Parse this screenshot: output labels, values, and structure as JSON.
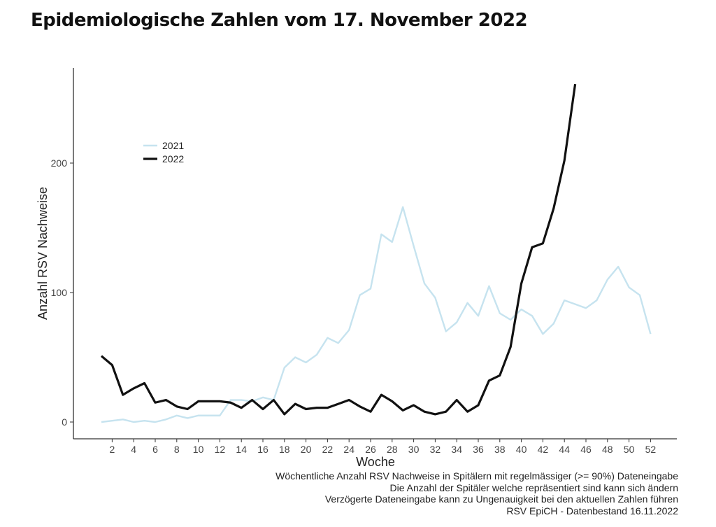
{
  "title": "Epidemiologische Zahlen vom 17. November 2022",
  "chart_data": {
    "type": "line",
    "xlabel": "Woche",
    "ylabel": "Anzahl RSV Nachweise",
    "xlim": [
      0.3,
      54.3
    ],
    "ylim": [
      -13,
      273
    ],
    "xticks": [
      2,
      4,
      6,
      8,
      10,
      12,
      14,
      16,
      18,
      20,
      22,
      24,
      26,
      28,
      30,
      32,
      34,
      36,
      38,
      40,
      42,
      44,
      46,
      48,
      50,
      52
    ],
    "yticks": [
      0,
      100,
      200
    ],
    "grid": false,
    "legend_position": "top-left",
    "series": [
      {
        "name": "2021",
        "color": "#c6e3ef",
        "x": [
          1,
          2,
          3,
          4,
          5,
          6,
          7,
          8,
          9,
          10,
          11,
          12,
          13,
          14,
          15,
          16,
          17,
          18,
          19,
          20,
          21,
          22,
          23,
          24,
          25,
          26,
          27,
          28,
          29,
          30,
          31,
          32,
          33,
          34,
          35,
          36,
          37,
          38,
          39,
          40,
          41,
          42,
          43,
          44,
          45,
          46,
          47,
          48,
          49,
          50,
          51,
          52
        ],
        "values": [
          0,
          1,
          2,
          0,
          1,
          0,
          2,
          5,
          3,
          5,
          5,
          5,
          17,
          17,
          16,
          19,
          17,
          42,
          50,
          46,
          52,
          65,
          61,
          71,
          98,
          103,
          145,
          139,
          166,
          136,
          107,
          96,
          70,
          77,
          92,
          82,
          105,
          84,
          79,
          87,
          82,
          68,
          76,
          94,
          91,
          88,
          94,
          110,
          120,
          104,
          98,
          68
        ]
      },
      {
        "name": "2022",
        "color": "#111111",
        "x": [
          1,
          2,
          3,
          4,
          5,
          6,
          7,
          8,
          9,
          10,
          11,
          12,
          13,
          14,
          15,
          16,
          17,
          18,
          19,
          20,
          21,
          22,
          23,
          24,
          25,
          26,
          27,
          28,
          29,
          30,
          31,
          32,
          33,
          34,
          35,
          36,
          37,
          38,
          39,
          40,
          41,
          42,
          43,
          44,
          45
        ],
        "values": [
          51,
          44,
          21,
          26,
          30,
          15,
          17,
          12,
          10,
          16,
          16,
          16,
          15,
          11,
          17,
          10,
          17,
          6,
          14,
          10,
          11,
          11,
          14,
          17,
          12,
          8,
          21,
          16,
          9,
          13,
          8,
          6,
          8,
          17,
          8,
          13,
          32,
          36,
          58,
          107,
          135,
          138,
          165,
          202,
          261
        ]
      }
    ],
    "caption": [
      "Wöchentliche Anzahl RSV Nachweise in Spitälern mit regelmässiger (>= 90%) Dateneingabe",
      "Die Anzahl der Spitäler welche repräsentiert sind kann sich ändern",
      "Verzögerte Dateneingabe kann zu Ungenauigkeit bei den aktuellen Zahlen führen",
      "RSV EpiCH - Datenbestand 16.11.2022"
    ]
  }
}
